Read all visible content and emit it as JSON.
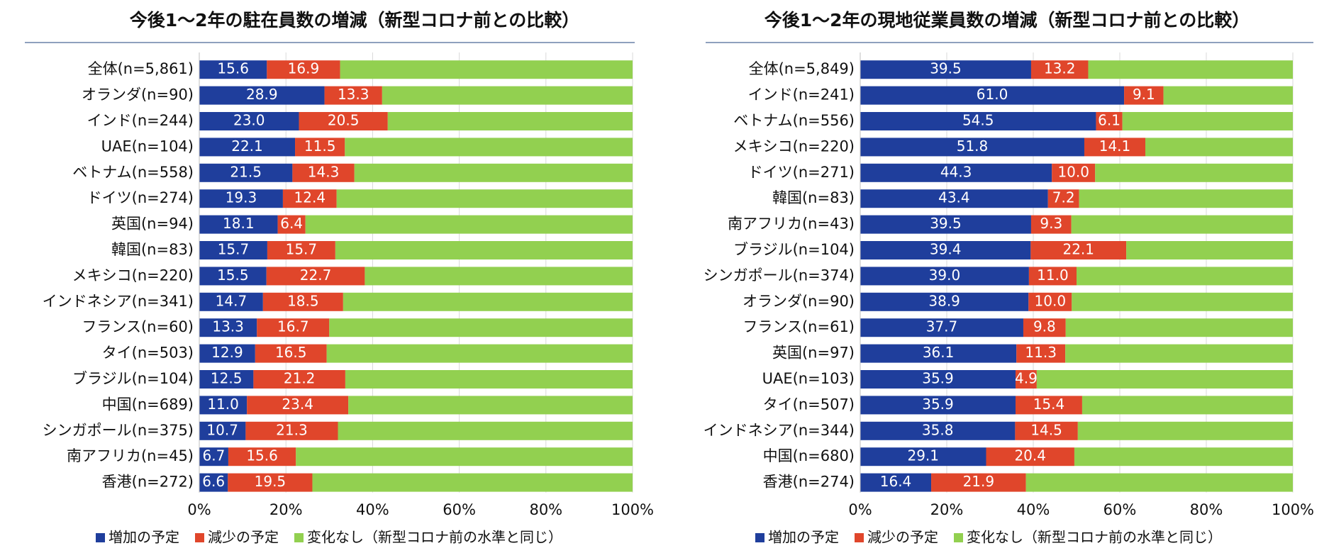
{
  "chart_data": [
    {
      "type": "bar",
      "orientation": "horizontal",
      "stacked": true,
      "title": "今後1～2年の駐在員数の増減（新型コロナ前との比較）",
      "categories": [
        "全体(n=5,861)",
        "オランダ(n=90)",
        "インド(n=244)",
        "UAE(n=104)",
        "ベトナム(n=558)",
        "ドイツ(n=274)",
        "英国(n=94)",
        "韓国(n=83)",
        "メキシコ(n=220)",
        "インドネシア(n=341)",
        "フランス(n=60)",
        "タイ(n=503)",
        "ブラジル(n=104)",
        "中国(n=689)",
        "シンガポール(n=375)",
        "南アフリカ(n=45)",
        "香港(n=272)"
      ],
      "series": [
        {
          "name": "増加の予定",
          "color": "#1f3e9c",
          "values": [
            15.6,
            28.9,
            23.0,
            22.1,
            21.5,
            19.3,
            18.1,
            15.7,
            15.5,
            14.7,
            13.3,
            12.9,
            12.5,
            11.0,
            10.7,
            6.7,
            6.6
          ],
          "value_labels": [
            "15.6",
            "28.9",
            "23.0",
            "22.1",
            "21.5",
            "19.3",
            "18.1",
            "15.7",
            "15.5",
            "14.7",
            "13.3",
            "12.9",
            "12.5",
            "11.0",
            "10.7",
            "6.7",
            "6.6"
          ]
        },
        {
          "name": "減少の予定",
          "color": "#e0462b",
          "values": [
            16.9,
            13.3,
            20.5,
            11.5,
            14.3,
            12.4,
            6.4,
            15.7,
            22.7,
            18.5,
            16.7,
            16.5,
            21.2,
            23.4,
            21.3,
            15.6,
            19.5
          ],
          "value_labels": [
            "16.9",
            "13.3",
            "20.5",
            "11.5",
            "14.3",
            "12.4",
            "6.4",
            "15.7",
            "22.7",
            "18.5",
            "16.7",
            "16.5",
            "21.2",
            "23.4",
            "21.3",
            "15.6",
            "19.5"
          ]
        },
        {
          "name": "変化なし（新型コロナ前の水準と同じ）",
          "color": "#92d050",
          "values": [
            67.5,
            57.8,
            56.5,
            66.4,
            64.2,
            68.3,
            75.5,
            68.6,
            61.8,
            66.8,
            70.0,
            70.6,
            66.3,
            65.6,
            68.0,
            77.7,
            73.9
          ]
        }
      ],
      "xlim": [
        0,
        100
      ],
      "xticks": [
        {
          "value": 0,
          "label": "0%"
        },
        {
          "value": 20,
          "label": "20%"
        },
        {
          "value": 40,
          "label": "40%"
        },
        {
          "value": 60,
          "label": "60%"
        },
        {
          "value": 80,
          "label": "80%"
        },
        {
          "value": 100,
          "label": "100%"
        }
      ]
    },
    {
      "type": "bar",
      "orientation": "horizontal",
      "stacked": true,
      "title": "今後1～2年の現地従業員数の増減（新型コロナ前との比較）",
      "categories": [
        "全体(n=5,849)",
        "インド(n=241)",
        "ベトナム(n=556)",
        "メキシコ(n=220)",
        "ドイツ(n=271)",
        "韓国(n=83)",
        "南アフリカ(n=43)",
        "ブラジル(n=104)",
        "シンガポール(n=374)",
        "オランダ(n=90)",
        "フランス(n=61)",
        "英国(n=97)",
        "UAE(n=103)",
        "タイ(n=507)",
        "インドネシア(n=344)",
        "中国(n=680)",
        "香港(n=274)"
      ],
      "series": [
        {
          "name": "増加の予定",
          "color": "#1f3e9c",
          "values": [
            39.5,
            61.0,
            54.5,
            51.8,
            44.3,
            43.4,
            39.5,
            39.4,
            39.0,
            38.9,
            37.7,
            36.1,
            35.9,
            35.9,
            35.8,
            29.1,
            16.4
          ],
          "value_labels": [
            "39.5",
            "61.0",
            "54.5",
            "51.8",
            "44.3",
            "43.4",
            "39.5",
            "39.4",
            "39.0",
            "38.9",
            "37.7",
            "36.1",
            "35.9",
            "35.9",
            "35.8",
            "29.1",
            "16.4"
          ]
        },
        {
          "name": "減少の予定",
          "color": "#e0462b",
          "values": [
            13.2,
            9.1,
            6.1,
            14.1,
            10.0,
            7.2,
            9.3,
            22.1,
            11.0,
            10.0,
            9.8,
            11.3,
            4.9,
            15.4,
            14.5,
            20.4,
            21.9
          ],
          "value_labels": [
            "13.2",
            "9.1",
            "6.1",
            "14.1",
            "10.0",
            "7.2",
            "9.3",
            "22.1",
            "11.0",
            "10.0",
            "9.8",
            "11.3",
            "4.9",
            "15.4",
            "14.5",
            "20.4",
            "21.9"
          ]
        },
        {
          "name": "変化なし（新型コロナ前の水準と同じ）",
          "color": "#92d050",
          "values": [
            47.3,
            29.9,
            39.4,
            34.1,
            45.7,
            49.4,
            51.2,
            38.5,
            50.0,
            51.1,
            52.5,
            52.6,
            59.2,
            48.7,
            49.7,
            50.5,
            61.7
          ]
        }
      ],
      "xlim": [
        0,
        100
      ],
      "xticks": [
        {
          "value": 0,
          "label": "0%"
        },
        {
          "value": 20,
          "label": "20%"
        },
        {
          "value": 40,
          "label": "40%"
        },
        {
          "value": 60,
          "label": "60%"
        },
        {
          "value": 80,
          "label": "80%"
        },
        {
          "value": 100,
          "label": "100%"
        }
      ]
    }
  ]
}
